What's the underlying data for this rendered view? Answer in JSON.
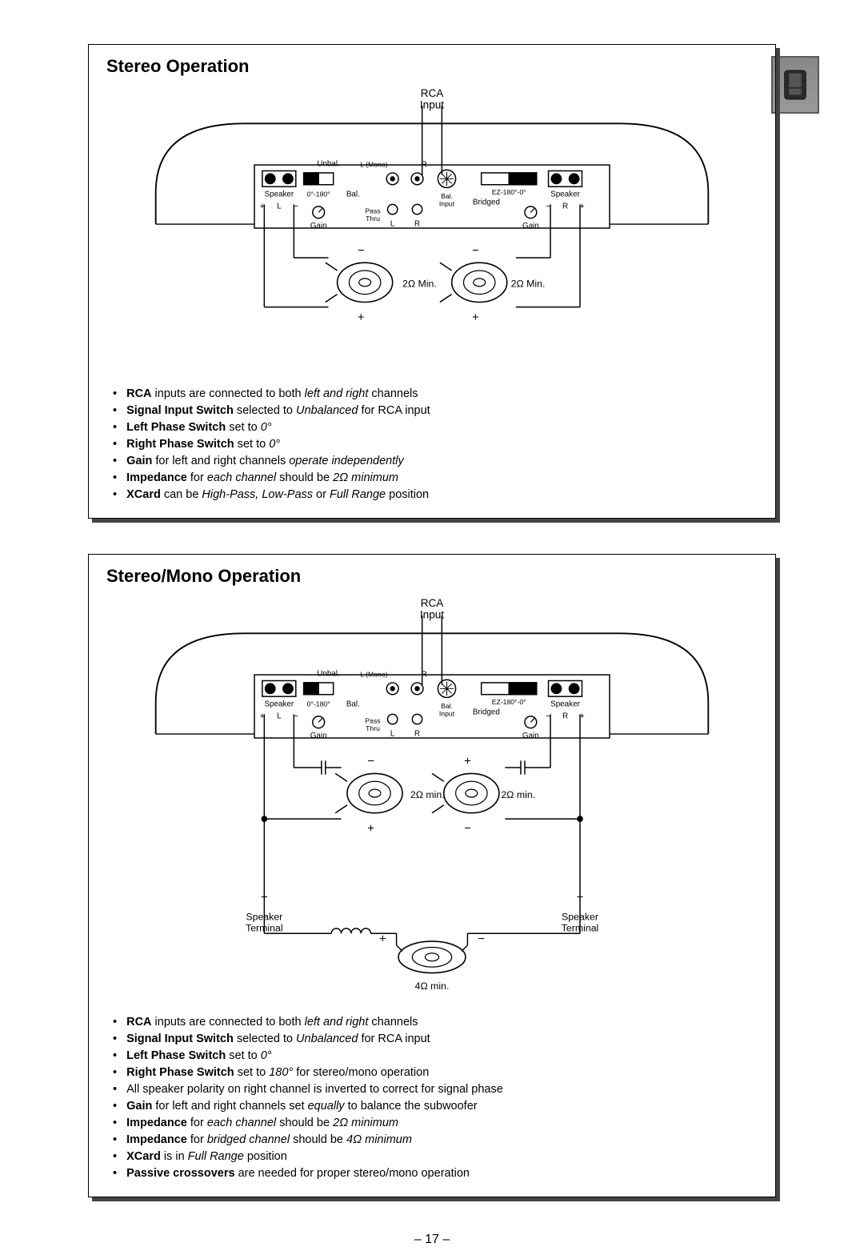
{
  "page_number": "17",
  "sections": {
    "stereo": {
      "title": "Stereo Operation",
      "diagram": {
        "rca_input_label": "RCA\nInput",
        "amp": {
          "unbal": "Unbal.",
          "l_mono": "L (Mono)",
          "r_top": "R",
          "speaker_l": "Speaker",
          "speaker_r": "Speaker",
          "phase_l": "0°-180°",
          "phase_r": "EZ-180°-0°",
          "bal_l": "Bal.",
          "bal_r": "Bal.\nInput",
          "bridged": "Bridged",
          "plus": "+",
          "minus": "−",
          "l_term": "L",
          "r_term": "R",
          "gain_l": "Gain",
          "gain_r": "Gain",
          "pass_thru": "Pass\nThru",
          "pt_l": "L",
          "pt_r": "R"
        },
        "speaker_left": {
          "polarity_top": "−",
          "polarity_bottom": "+",
          "imp": "2Ω Min."
        },
        "speaker_right": {
          "polarity_top": "−",
          "polarity_bottom": "+",
          "imp": "2Ω Min."
        }
      },
      "notes": [
        {
          "parts": [
            {
              "b": true,
              "t": "RCA"
            },
            {
              "t": " inputs are connected to both "
            },
            {
              "i": true,
              "t": "left and right"
            },
            {
              "t": " channels"
            }
          ]
        },
        {
          "parts": [
            {
              "b": true,
              "t": "Signal Input Switch"
            },
            {
              "t": " selected to "
            },
            {
              "i": true,
              "t": "Unbalanced"
            },
            {
              "t": " for RCA input"
            }
          ]
        },
        {
          "parts": [
            {
              "b": true,
              "t": "Left Phase Switch"
            },
            {
              "t": " set to "
            },
            {
              "i": true,
              "t": "0°"
            }
          ]
        },
        {
          "parts": [
            {
              "b": true,
              "t": "Right Phase Switch"
            },
            {
              "t": " set to "
            },
            {
              "i": true,
              "t": "0°"
            }
          ]
        },
        {
          "parts": [
            {
              "b": true,
              "t": "Gain"
            },
            {
              "t": " for left and right channels "
            },
            {
              "i": true,
              "t": "operate independently"
            }
          ]
        },
        {
          "parts": [
            {
              "b": true,
              "t": "Impedance"
            },
            {
              "t": " for "
            },
            {
              "i": true,
              "t": "each channel"
            },
            {
              "t": " should be "
            },
            {
              "i": true,
              "t": "2Ω minimum"
            }
          ]
        },
        {
          "parts": [
            {
              "b": true,
              "t": "XCard"
            },
            {
              "t": " can be "
            },
            {
              "i": true,
              "t": "High-Pass, Low-Pass"
            },
            {
              "t": " or "
            },
            {
              "i": true,
              "t": "Full Range"
            },
            {
              "t": " position"
            }
          ]
        }
      ]
    },
    "stereo_mono": {
      "title": "Stereo/Mono Operation",
      "diagram": {
        "rca_input_label": "RCA\nInput",
        "amp": {
          "unbal": "Unbal.",
          "l_mono": "L (Mono)",
          "r_top": "R",
          "speaker_l": "Speaker",
          "speaker_r": "Speaker",
          "phase_l": "0°-180°",
          "phase_r": "EZ-180°-0°",
          "bal_l": "Bal.",
          "bal_r": "Bal.\nInput",
          "bridged": "Bridged",
          "plus": "+",
          "minus": "−",
          "l_term": "L",
          "r_term": "R",
          "gain_l": "Gain",
          "gain_r": "Gain",
          "pass_thru": "Pass\nThru",
          "pt_l": "L",
          "pt_r": "R"
        },
        "speaker_left": {
          "polarity_top": "−",
          "polarity_bottom": "+",
          "imp": "2Ω min."
        },
        "speaker_right": {
          "polarity_top": "+",
          "polarity_bottom": "−",
          "imp": "2Ω min."
        },
        "speaker_bridged": {
          "polarity_left": "+",
          "polarity_right": "−",
          "imp": "4Ω min."
        },
        "terminal_left": {
          "sign": "+",
          "label": "Speaker\nTerminal"
        },
        "terminal_right": {
          "sign": "−",
          "label": "Speaker\nTerminal"
        }
      },
      "notes": [
        {
          "parts": [
            {
              "b": true,
              "t": "RCA"
            },
            {
              "t": " inputs are connected to both "
            },
            {
              "i": true,
              "t": "left and right"
            },
            {
              "t": " channels"
            }
          ]
        },
        {
          "parts": [
            {
              "b": true,
              "t": "Signal Input Switch"
            },
            {
              "t": " selected to "
            },
            {
              "i": true,
              "t": "Unbalanced"
            },
            {
              "t": " for RCA input"
            }
          ]
        },
        {
          "parts": [
            {
              "b": true,
              "t": "Left Phase Switch"
            },
            {
              "t": " set to "
            },
            {
              "i": true,
              "t": "0°"
            }
          ]
        },
        {
          "parts": [
            {
              "b": true,
              "t": "Right Phase Switch"
            },
            {
              "t": " set to "
            },
            {
              "i": true,
              "t": "180°"
            },
            {
              "t": " for stereo/mono operation"
            }
          ]
        },
        {
          "parts": [
            {
              "t": "All speaker polarity on right channel is inverted to correct for signal phase"
            }
          ]
        },
        {
          "parts": [
            {
              "b": true,
              "t": "Gain"
            },
            {
              "t": " for left and right channels set "
            },
            {
              "i": true,
              "t": "equally"
            },
            {
              "t": " to balance the subwoofer"
            }
          ]
        },
        {
          "parts": [
            {
              "b": true,
              "t": "Impedance"
            },
            {
              "t": " for "
            },
            {
              "i": true,
              "t": "each channel"
            },
            {
              "t": " should be "
            },
            {
              "i": true,
              "t": "2Ω minimum"
            }
          ]
        },
        {
          "parts": [
            {
              "b": true,
              "t": "Impedance"
            },
            {
              "t": " for "
            },
            {
              "i": true,
              "t": "bridged channel"
            },
            {
              "t": " should be "
            },
            {
              "i": true,
              "t": "4Ω minimum"
            }
          ]
        },
        {
          "parts": [
            {
              "b": true,
              "t": "XCard"
            },
            {
              "t": " is in "
            },
            {
              "i": true,
              "t": "Full Range"
            },
            {
              "t": " position"
            }
          ]
        },
        {
          "parts": [
            {
              "b": true,
              "t": "Passive crossovers"
            },
            {
              "t": " are needed for proper stereo/mono operation"
            }
          ]
        }
      ]
    }
  },
  "style": {
    "text_color": "#000000",
    "panel_border": "#000000",
    "shadow": "#444444",
    "stroke": "#000000",
    "stroke_width": 1.2,
    "font_size_title": 22,
    "font_size_body": 14.5,
    "font_size_diagram": 9,
    "background": "#ffffff"
  }
}
